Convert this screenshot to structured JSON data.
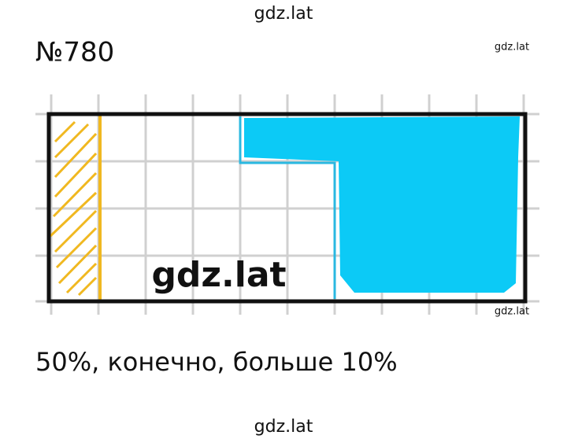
{
  "watermark_top": "gdz.lat",
  "title": "№780",
  "watermark_corner_top": "gdz.lat",
  "watermark_center": "gdz.lat",
  "watermark_corner_bottom": "gdz.lat",
  "answer": "50%, конечно, больше 10%",
  "watermark_bottom": "gdz.lat"
}
